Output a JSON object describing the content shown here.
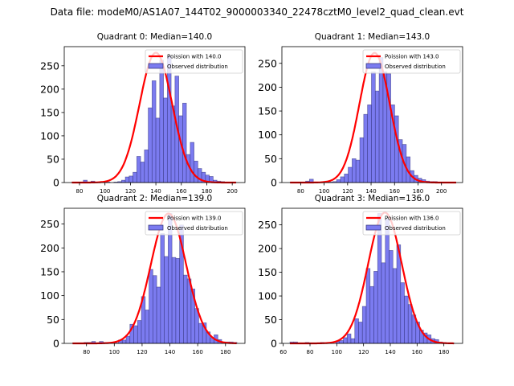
{
  "suptitle": "Data file: modeM0/AS1A07_144T02_9000003340_22478cztM0_level2_quad_clean.evt",
  "chart_data": [
    {
      "type": "bar",
      "title": "Quadrant 0: Median=140.0",
      "xlabel": "",
      "ylabel": "",
      "xlim": [
        68,
        210
      ],
      "ylim": [
        0,
        291
      ],
      "xticks": [
        80,
        100,
        120,
        140,
        160,
        180,
        200
      ],
      "yticks": [
        0,
        50,
        100,
        150,
        200,
        250
      ],
      "legend": [
        "Poission with 140.0",
        "Observed distribution"
      ],
      "legend_position": "upper right",
      "bin_edges_start": 74,
      "bin_width": 3,
      "values": [
        1,
        0,
        0,
        5,
        0,
        3,
        0,
        0,
        0,
        1,
        0,
        1,
        2,
        5,
        12,
        14,
        22,
        56,
        44,
        70,
        160,
        218,
        138,
        262,
        181,
        271,
        164,
        228,
        143,
        170,
        60,
        86,
        46,
        30,
        22,
        16,
        13,
        5,
        3,
        2,
        1,
        1,
        1
      ],
      "curve": {
        "name": "Poission with 140.0",
        "mean": 140.0,
        "peak": 278,
        "color": "#ff0000"
      }
    },
    {
      "type": "bar",
      "title": "Quadrant 1: Median=143.0",
      "xlabel": "",
      "ylabel": "",
      "xlim": [
        64,
        218
      ],
      "ylim": [
        0,
        285
      ],
      "xticks": [
        80,
        100,
        120,
        140,
        160,
        180,
        200
      ],
      "yticks": [
        0,
        50,
        100,
        150,
        200,
        250
      ],
      "legend": [
        "Poission with 143.0",
        "Observed distribution"
      ],
      "legend_position": "upper right",
      "bin_edges_start": 71,
      "bin_width": 3.3,
      "values": [
        1,
        1,
        0,
        0,
        3,
        7,
        0,
        1,
        1,
        3,
        1,
        2,
        6,
        12,
        18,
        32,
        50,
        47,
        94,
        143,
        163,
        232,
        192,
        262,
        232,
        228,
        163,
        140,
        90,
        80,
        54,
        25,
        15,
        9,
        6,
        3,
        2,
        2,
        1,
        1,
        1,
        1,
        0
      ],
      "curve": {
        "name": "Poission with 143.0",
        "mean": 143.0,
        "peak": 272,
        "color": "#ff0000"
      }
    },
    {
      "type": "bar",
      "title": "Quadrant 2: Median=139.0",
      "xlabel": "",
      "ylabel": "",
      "xlim": [
        64,
        194
      ],
      "ylim": [
        0,
        283
      ],
      "xticks": [
        80,
        100,
        120,
        140,
        160,
        180
      ],
      "yticks": [
        0,
        50,
        100,
        150,
        200,
        250
      ],
      "legend": [
        "Poission with 139.0",
        "Observed distribution"
      ],
      "legend_position": "upper right",
      "bin_edges_start": 70,
      "bin_width": 2.75,
      "values": [
        1,
        0,
        0,
        2,
        2,
        4,
        0,
        4,
        2,
        2,
        0,
        1,
        7,
        7,
        15,
        40,
        37,
        48,
        98,
        70,
        155,
        142,
        118,
        230,
        182,
        272,
        180,
        178,
        248,
        143,
        135,
        114,
        73,
        42,
        43,
        24,
        12,
        18,
        8,
        3,
        3,
        3,
        2
      ],
      "curve": {
        "name": "Poission with 139.0",
        "mean": 139.0,
        "peak": 272,
        "color": "#ff0000"
      }
    },
    {
      "type": "bar",
      "title": "Quadrant 3: Median=136.0",
      "xlabel": "",
      "ylabel": "",
      "xlim": [
        59,
        194
      ],
      "ylim": [
        0,
        285
      ],
      "xticks": [
        60,
        80,
        100,
        120,
        140,
        160,
        180
      ],
      "yticks": [
        0,
        50,
        100,
        150,
        200,
        250
      ],
      "legend": [
        "Poission with 136.0",
        "Observed distribution"
      ],
      "legend_position": "upper right",
      "bin_edges_start": 65,
      "bin_width": 2.85,
      "values": [
        3,
        3,
        0,
        1,
        2,
        0,
        1,
        0,
        2,
        0,
        1,
        0,
        4,
        6,
        12,
        20,
        10,
        52,
        45,
        78,
        158,
        120,
        152,
        274,
        170,
        262,
        196,
        158,
        208,
        128,
        100,
        82,
        60,
        45,
        28,
        22,
        18,
        10,
        8,
        3,
        2,
        1,
        1
      ],
      "curve": {
        "name": "Poission with 136.0",
        "mean": 136.0,
        "peak": 276,
        "color": "#ff0000"
      }
    }
  ],
  "colors": {
    "bar_fill": "#7b7bf0",
    "bar_edge": "#2a2a70",
    "curve": "#ff0000",
    "axes": "#000000"
  }
}
